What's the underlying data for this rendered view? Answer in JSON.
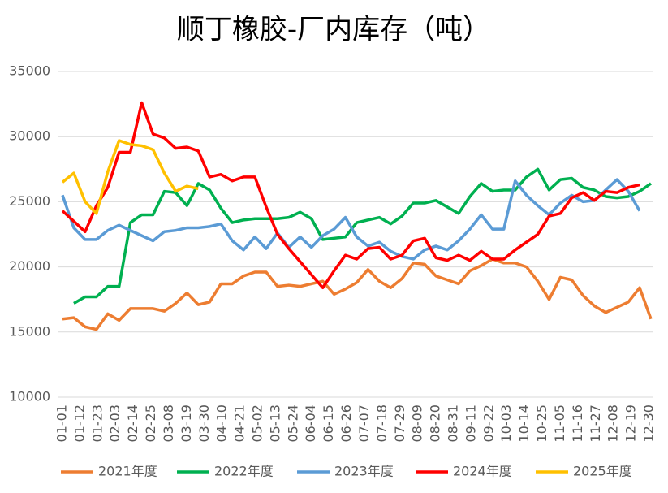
{
  "chart_data": {
    "type": "line",
    "title": "顺丁橡胶-厂内库存（吨）",
    "x": [
      0,
      7,
      14,
      21,
      28,
      35,
      42,
      49,
      56,
      63,
      70,
      77,
      84,
      91,
      98,
      105,
      112,
      119,
      126,
      133,
      140,
      147,
      154,
      161,
      168,
      175,
      182,
      189,
      196,
      203,
      210,
      217,
      224,
      231,
      238,
      245,
      252,
      259,
      266,
      273,
      280,
      287,
      294,
      301,
      308,
      315,
      322,
      329,
      336,
      343,
      350,
      357,
      364
    ],
    "xlim": [
      0,
      363
    ],
    "xticks": [
      {
        "value": 0,
        "label": "01-01"
      },
      {
        "value": 11,
        "label": "01-12"
      },
      {
        "value": 22,
        "label": "01-23"
      },
      {
        "value": 33,
        "label": "02-03"
      },
      {
        "value": 44,
        "label": "02-14"
      },
      {
        "value": 55,
        "label": "02-25"
      },
      {
        "value": 66,
        "label": "03-08"
      },
      {
        "value": 77,
        "label": "03-19"
      },
      {
        "value": 88,
        "label": "03-30"
      },
      {
        "value": 99,
        "label": "04-10"
      },
      {
        "value": 110,
        "label": "04-21"
      },
      {
        "value": 121,
        "label": "05-02"
      },
      {
        "value": 132,
        "label": "05-13"
      },
      {
        "value": 143,
        "label": "05-24"
      },
      {
        "value": 154,
        "label": "06-04"
      },
      {
        "value": 165,
        "label": "06-15"
      },
      {
        "value": 176,
        "label": "06-26"
      },
      {
        "value": 187,
        "label": "07-07"
      },
      {
        "value": 198,
        "label": "07-18"
      },
      {
        "value": 209,
        "label": "07-29"
      },
      {
        "value": 220,
        "label": "08-09"
      },
      {
        "value": 231,
        "label": "08-20"
      },
      {
        "value": 242,
        "label": "08-31"
      },
      {
        "value": 253,
        "label": "09-11"
      },
      {
        "value": 264,
        "label": "09-22"
      },
      {
        "value": 275,
        "label": "10-03"
      },
      {
        "value": 286,
        "label": "10-14"
      },
      {
        "value": 297,
        "label": "10-25"
      },
      {
        "value": 308,
        "label": "11-05"
      },
      {
        "value": 319,
        "label": "11-16"
      },
      {
        "value": 330,
        "label": "11-27"
      },
      {
        "value": 341,
        "label": "12-08"
      },
      {
        "value": 352,
        "label": "12-19"
      },
      {
        "value": 363,
        "label": "12-30"
      }
    ],
    "ylim": [
      10000,
      35000
    ],
    "yticks": [
      10000,
      15000,
      20000,
      25000,
      30000,
      35000
    ],
    "grid": true,
    "series": [
      {
        "name": "2021年度",
        "color": "#ed7d31",
        "values": [
          16000,
          16100,
          15400,
          15200,
          16400,
          15900,
          16800,
          16800,
          16800,
          16600,
          17200,
          18000,
          17100,
          17300,
          18700,
          18700,
          19300,
          19600,
          19600,
          18500,
          18600,
          18500,
          18700,
          18900,
          17900,
          18300,
          18800,
          19800,
          18900,
          18400,
          19100,
          20300,
          20200,
          19300,
          19000,
          18700,
          19700,
          20100,
          20600,
          20300,
          20300,
          20000,
          18900,
          17500,
          19200,
          19000,
          17800,
          17000,
          16500,
          16900,
          17300,
          18400,
          16000
        ]
      },
      {
        "name": "2022年度",
        "color": "#00b050",
        "values": [
          null,
          17200,
          17700,
          17700,
          18500,
          18500,
          23400,
          24000,
          24000,
          25800,
          25700,
          24700,
          26400,
          25900,
          24500,
          23400,
          23600,
          23700,
          23700,
          23700,
          23800,
          24200,
          23700,
          22100,
          22200,
          22300,
          23400,
          23600,
          23800,
          23300,
          23900,
          24900,
          24900,
          25100,
          24600,
          24100,
          25400,
          26400,
          25800,
          25900,
          25900,
          26900,
          27500,
          25900,
          26700,
          26800,
          26100,
          25900,
          25400,
          25300,
          25400,
          25800,
          26400
        ]
      },
      {
        "name": "2023年度",
        "color": "#5b9bd5",
        "values": [
          25500,
          23000,
          22100,
          22100,
          22800,
          23200,
          22800,
          22400,
          22000,
          22700,
          22800,
          23000,
          23000,
          23100,
          23300,
          22000,
          21300,
          22300,
          21400,
          22600,
          21500,
          22300,
          21500,
          22400,
          22900,
          23800,
          22300,
          21600,
          21900,
          21200,
          20800,
          20600,
          21300,
          21600,
          21300,
          22000,
          22900,
          24000,
          22900,
          22900,
          26600,
          25500,
          24700,
          24000,
          24900,
          25500,
          25000,
          25100,
          25900,
          26700,
          25800,
          24300,
          null
        ]
      },
      {
        "name": "2024年度",
        "color": "#ff0000",
        "values": [
          24300,
          23500,
          22700,
          24700,
          26100,
          28800,
          28800,
          32600,
          30200,
          29900,
          29100,
          29200,
          28900,
          26900,
          27100,
          26600,
          26900,
          26900,
          24600,
          22500,
          21400,
          20400,
          19400,
          18400,
          19700,
          20900,
          20600,
          21400,
          21500,
          20600,
          20900,
          22000,
          22200,
          20700,
          20500,
          20900,
          20500,
          21200,
          20600,
          20600,
          21300,
          21900,
          22500,
          23900,
          24100,
          25300,
          25700,
          25100,
          25800,
          25700,
          26100,
          26300,
          null
        ]
      },
      {
        "name": "2025年度",
        "color": "#ffc000",
        "values": [
          26500,
          27200,
          25000,
          24100,
          27300,
          29700,
          29400,
          29300,
          29000,
          27200,
          25800,
          26200,
          26000,
          null,
          null,
          null,
          null,
          null,
          null,
          null,
          null,
          null,
          null,
          null,
          null,
          null,
          null,
          null,
          null,
          null,
          null,
          null,
          null,
          null,
          null,
          null,
          null,
          null,
          null,
          null,
          null,
          null,
          null,
          null,
          null,
          null,
          null,
          null,
          null,
          null,
          null,
          null,
          null
        ]
      }
    ]
  }
}
